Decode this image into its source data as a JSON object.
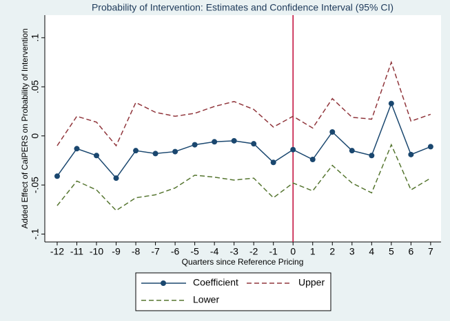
{
  "chart_data": {
    "type": "line",
    "title": "Probability of Intervention: Estimates and Confidence Interval (95% CI)",
    "xlabel": "Quarters since Reference Pricing",
    "ylabel": "Added Effect of CalPERS on Probability of Intervention",
    "x": [
      -12,
      -11,
      -10,
      -9,
      -8,
      -7,
      -6,
      -5,
      -4,
      -3,
      -2,
      -1,
      0,
      1,
      2,
      3,
      4,
      5,
      6,
      7
    ],
    "series": [
      {
        "name": "Coefficient",
        "color": "#1a476f",
        "style": "solid",
        "marker": true,
        "values": [
          -0.041,
          -0.013,
          -0.02,
          -0.043,
          -0.015,
          -0.018,
          -0.016,
          -0.009,
          -0.006,
          -0.005,
          -0.008,
          -0.027,
          -0.014,
          -0.024,
          0.004,
          -0.015,
          -0.02,
          0.033,
          -0.019,
          -0.011
        ]
      },
      {
        "name": "Upper",
        "color": "#90353b",
        "style": "dashed",
        "marker": false,
        "values": [
          -0.01,
          0.02,
          0.014,
          -0.01,
          0.034,
          0.024,
          0.02,
          0.023,
          0.03,
          0.035,
          0.027,
          0.009,
          0.02,
          0.008,
          0.038,
          0.019,
          0.017,
          0.075,
          0.015,
          0.022
        ]
      },
      {
        "name": "Lower",
        "color": "#55752f",
        "style": "dashed",
        "marker": false,
        "values": [
          -0.071,
          -0.046,
          -0.055,
          -0.076,
          -0.063,
          -0.06,
          -0.053,
          -0.04,
          -0.042,
          -0.045,
          -0.043,
          -0.063,
          -0.048,
          -0.056,
          -0.03,
          -0.048,
          -0.058,
          -0.009,
          -0.055,
          -0.043
        ]
      }
    ],
    "xline": 0,
    "xline_color": "#c10534",
    "xlim": [
      -12.63,
      7.53
    ],
    "xticks": [
      -12,
      -11,
      -10,
      -9,
      -8,
      -7,
      -6,
      -5,
      -4,
      -3,
      -2,
      -1,
      0,
      1,
      2,
      3,
      4,
      5,
      6,
      7
    ],
    "ylim": [
      -0.108,
      0.123
    ],
    "yticks": [
      {
        "value": -0.1,
        "label": "-.1"
      },
      {
        "value": -0.05,
        "label": "-.05"
      },
      0,
      {
        "value": 0.05,
        "label": ".05"
      },
      {
        "value": 0.1,
        "label": ".1"
      }
    ],
    "grid": false,
    "legend": "bottom"
  }
}
